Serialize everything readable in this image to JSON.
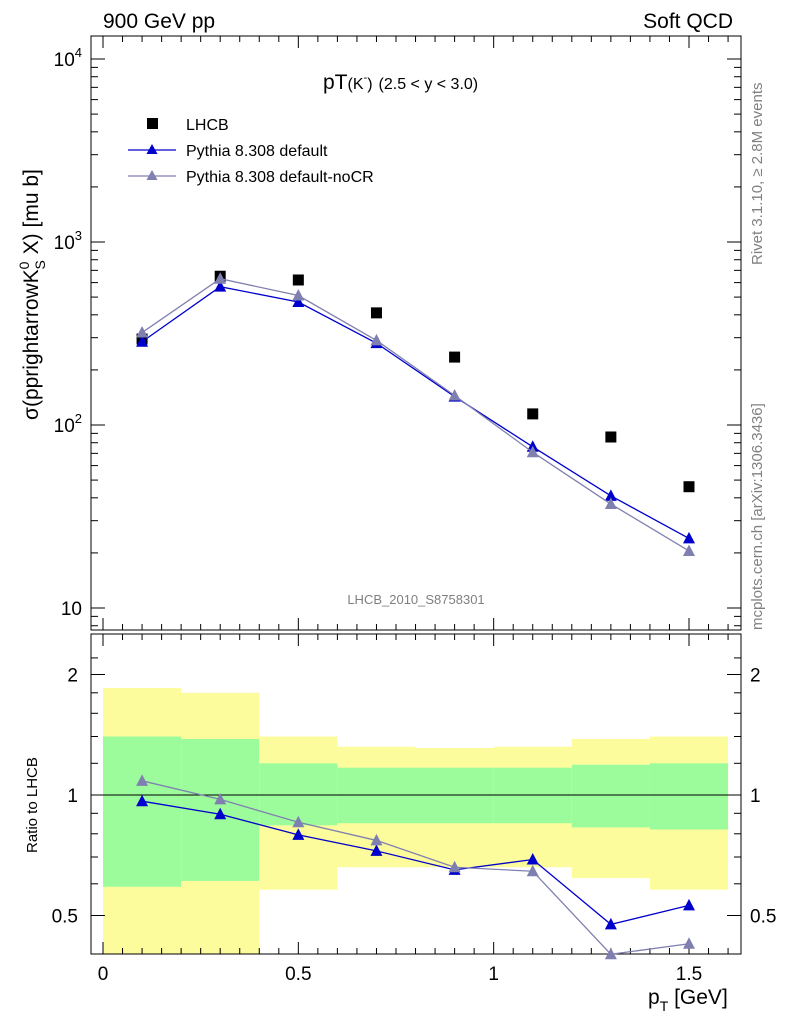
{
  "header": {
    "left": "900 GeV pp",
    "right": "Soft QCD"
  },
  "side_text": {
    "rivet": "Rivet 3.1.10, ≥ 2.8M events",
    "mcplots": "mcplots.cern.ch [arXiv:1306.3436]"
  },
  "plot_title": {
    "main": "pT",
    "particle": "(K",
    "sup": "-",
    "close": ")",
    "range": "(2.5 < y < 3.0)"
  },
  "analysis_label": "LHCB_2010_S8758301",
  "ylabel_main": "σ(pprightarrowK",
  "ylabel_sup": "0",
  "ylabel_sub": "S",
  "ylabel_tail": " X) [mu b]",
  "ylabel_ratio": "Ratio to LHCB",
  "xlabel": "p",
  "xlabel_sub": "T",
  "xlabel_tail": " [GeV]",
  "legend": [
    {
      "label": "LHCB",
      "color": "#000000",
      "marker": "square"
    },
    {
      "label": "Pythia 8.308 default",
      "color": "#0000cc",
      "marker": "triangle"
    },
    {
      "label": "Pythia 8.308 default-noCR",
      "color": "#8080b0",
      "marker": "triangle"
    }
  ],
  "chart_data": [
    {
      "type": "line",
      "title": "pT(K-) (2.5 < y < 3.0)",
      "xlabel": "p_T [GeV]",
      "ylabel": "σ(pprightarrowK0S X) [mu b]",
      "yscale": "log",
      "ylim": [
        8,
        13000
      ],
      "xlim": [
        -0.05,
        1.65
      ],
      "x_ticks": [
        "0",
        "0.5",
        "1",
        "1.5"
      ],
      "y_ticks": [
        "10",
        "10^2",
        "10^3",
        "10^4"
      ],
      "x": [
        0.1,
        0.3,
        0.5,
        0.7,
        0.9,
        1.1,
        1.3,
        1.5
      ],
      "series": [
        {
          "name": "LHCB",
          "values": [
            295,
            650,
            620,
            410,
            235,
            115,
            86,
            46
          ]
        },
        {
          "name": "Pythia 8.308 default",
          "values": [
            285,
            570,
            470,
            280,
            143,
            76,
            41,
            24
          ]
        },
        {
          "name": "Pythia 8.308 default-noCR",
          "values": [
            320,
            630,
            510,
            290,
            145,
            71,
            37,
            20.5
          ]
        }
      ]
    },
    {
      "type": "line",
      "ylabel": "Ratio to LHCB",
      "ylim": [
        0.35,
        2.35
      ],
      "xlim": [
        -0.05,
        1.65
      ],
      "y_ticks": [
        "0.5",
        "1",
        "2"
      ],
      "reference_line": 1,
      "x": [
        0.1,
        0.3,
        0.5,
        0.7,
        0.9,
        1.1,
        1.3,
        1.5
      ],
      "series": [
        {
          "name": "Pythia 8.308 default",
          "values": [
            0.965,
            0.895,
            0.795,
            0.725,
            0.65,
            0.69,
            0.475,
            0.53
          ]
        },
        {
          "name": "Pythia 8.308 default-noCR",
          "values": [
            1.085,
            0.975,
            0.855,
            0.77,
            0.66,
            0.645,
            0.4,
            0.425
          ]
        }
      ],
      "bands": {
        "bin_edges": [
          0,
          0.2,
          0.4,
          0.6,
          0.8,
          1.0,
          1.2,
          1.4,
          1.6
        ],
        "green": [
          [
            0.59,
            1.4
          ],
          [
            0.61,
            1.38
          ],
          [
            1.0,
            1.2
          ],
          [
            1.0,
            1.17
          ],
          [
            1.0,
            1.17
          ],
          [
            1.0,
            1.17
          ],
          [
            1.0,
            1.19
          ],
          [
            1.0,
            1.2
          ]
        ],
        "green_low": [
          0.59,
          0.61,
          0.84,
          0.85,
          0.85,
          0.85,
          0.83,
          0.82
        ],
        "yellow": [
          [
            0.35,
            1.85
          ],
          [
            0.35,
            1.8
          ],
          [
            0.58,
            1.4
          ],
          [
            0.66,
            1.32
          ],
          [
            0.66,
            1.31
          ],
          [
            0.66,
            1.32
          ],
          [
            0.62,
            1.38
          ],
          [
            0.58,
            1.4
          ]
        ],
        "green_color": "#9cfc9c",
        "yellow_color": "#fcfc9c"
      }
    }
  ]
}
